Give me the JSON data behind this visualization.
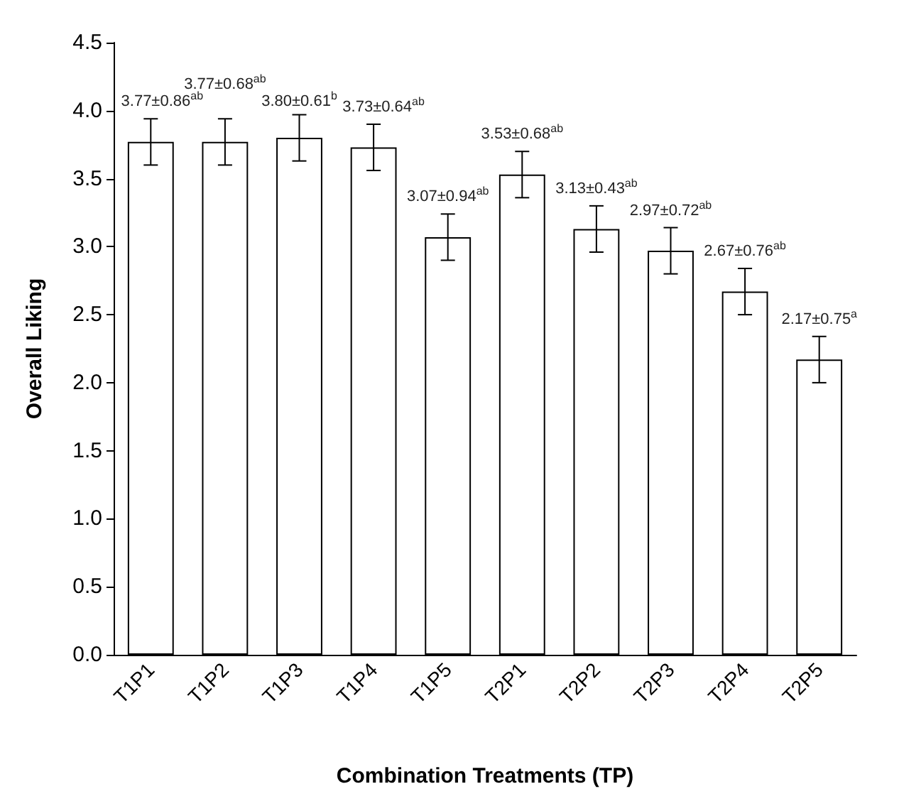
{
  "chart_data": {
    "type": "bar",
    "xlabel": "Combination Treatments (TP)",
    "ylabel": "Overall Liking",
    "categories": [
      "T1P1",
      "T1P2",
      "T1P3",
      "T1P4",
      "T1P5",
      "T2P1",
      "T2P2",
      "T2P3",
      "T2P4",
      "T2P5"
    ],
    "values": [
      3.77,
      3.77,
      3.8,
      3.73,
      3.07,
      3.53,
      3.13,
      2.97,
      2.67,
      2.17
    ],
    "errors": [
      0.17,
      0.17,
      0.17,
      0.17,
      0.17,
      0.17,
      0.17,
      0.17,
      0.17,
      0.17
    ],
    "value_labels": [
      "3.77±0.86$^{ab}$",
      "3.77±0.68$^{ab}$",
      "3.80±0.61$^{b}$",
      "3.73±0.64$^{ab}$",
      "3.07±0.94$^{ab}$",
      "3.53±0.68$^{ab}$",
      "3.13±0.43$^{ab}$",
      "2.97±0.72$^{ab}$",
      "2.67±0.76$^{ab}$",
      "2.17±0.75$^{a}$"
    ],
    "color": "#ffffff",
    "ylim": [
      0,
      4.5
    ],
    "yticks": [
      {
        "value": 0,
        "label": "0.0"
      },
      {
        "value": 0.5,
        "label": "0.5"
      },
      {
        "value": 1,
        "label": "1.0"
      },
      {
        "value": 1.5,
        "label": "1.5"
      },
      {
        "value": 2,
        "label": "2.0"
      },
      {
        "value": 2.5,
        "label": "2.5"
      },
      {
        "value": 3,
        "label": "3.0"
      },
      {
        "value": 3.5,
        "label": "3.5"
      },
      {
        "value": 4,
        "label": "4.0"
      },
      {
        "value": 4.5,
        "label": "4.5"
      }
    ],
    "grid": false
  }
}
